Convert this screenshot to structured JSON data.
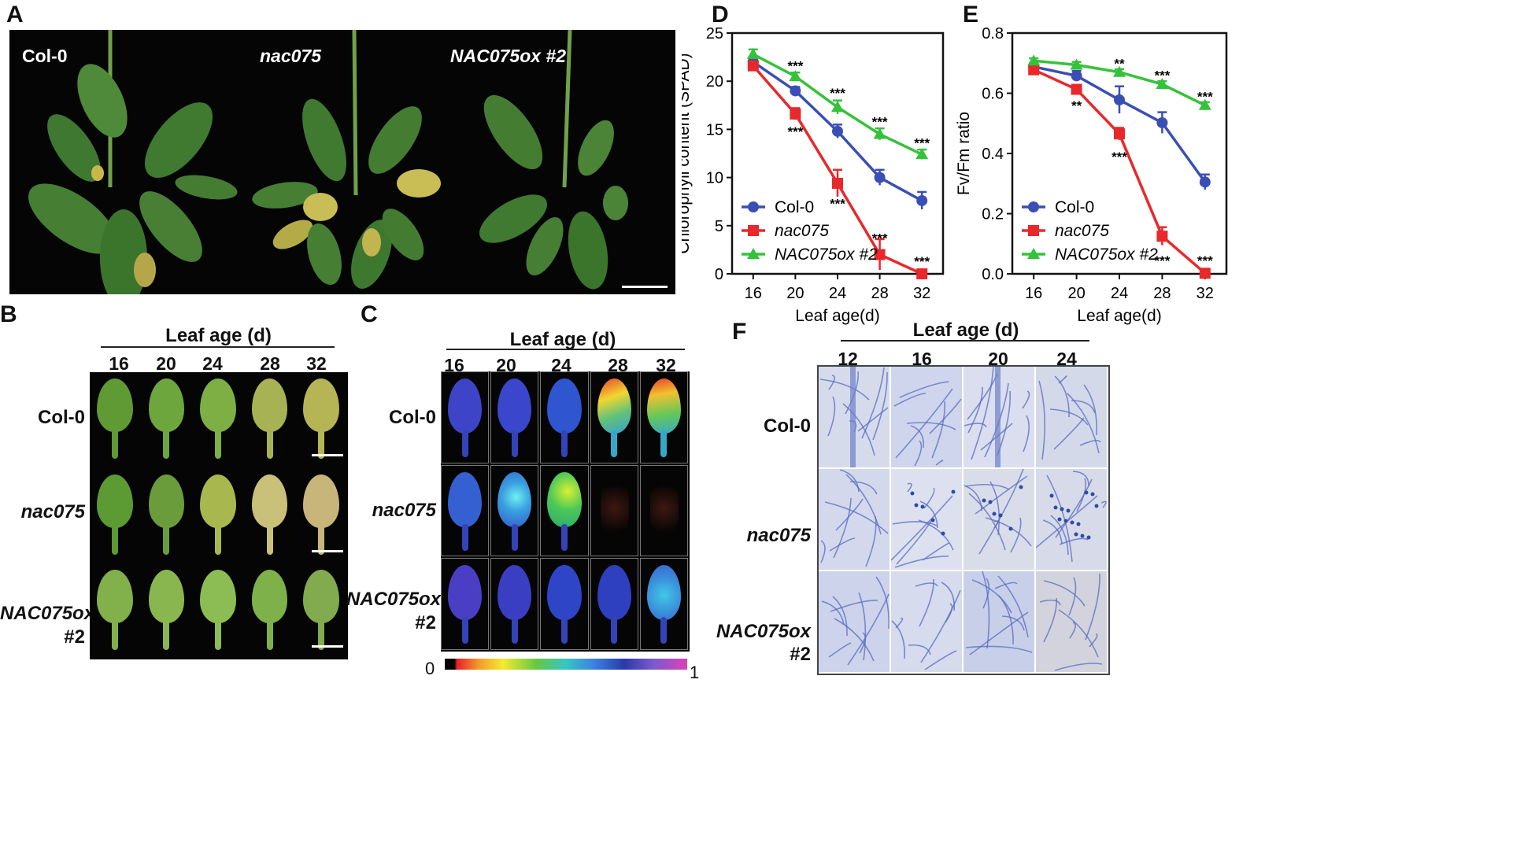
{
  "panels": {
    "A": {
      "letter": "A",
      "labels": [
        "Col-0",
        "nac075",
        "NAC075ox #2"
      ]
    },
    "B": {
      "letter": "B",
      "header": "Leaf age (d)",
      "ages": [
        "16",
        "20",
        "24",
        "28",
        "32"
      ],
      "rows": [
        "Col-0",
        "nac075",
        "NAC075ox",
        "#2"
      ]
    },
    "C": {
      "letter": "C",
      "header": "Leaf age (d)",
      "ages": [
        "16",
        "20",
        "24",
        "28",
        "32"
      ],
      "rows": [
        "Col-0",
        "nac075",
        "NAC075ox",
        "#2"
      ],
      "scale_min": "0",
      "scale_max": "1"
    },
    "F": {
      "letter": "F",
      "header": "Leaf age (d)",
      "ages": [
        "12",
        "16",
        "20",
        "24"
      ],
      "rows": [
        "Col-0",
        "nac075",
        "NAC075ox",
        "#2"
      ]
    }
  },
  "chart_data": [
    {
      "panel": "D",
      "type": "line",
      "x": [
        16,
        20,
        24,
        28,
        32
      ],
      "xlabel": "Leaf age(d)",
      "ylabel": "Chlorophyll content (SPAD)",
      "ylim": [
        0,
        25
      ],
      "yticks": [
        "0",
        "5",
        "10",
        "15",
        "20",
        "25"
      ],
      "xticks": [
        "16",
        "20",
        "24",
        "28",
        "32"
      ],
      "legend_position": "bottom-left",
      "series": [
        {
          "name": "Col-0",
          "color": "#3a4fb4",
          "marker": "circle",
          "values": [
            22.0,
            19.0,
            14.8,
            10.0,
            7.6
          ],
          "errors": [
            0.5,
            0.4,
            0.7,
            0.8,
            0.9
          ]
        },
        {
          "name": "nac075",
          "color": "#e8282b",
          "marker": "square",
          "values": [
            21.6,
            16.6,
            9.4,
            2.0,
            0.0
          ],
          "errors": [
            0.4,
            0.6,
            1.4,
            1.6,
            0.2
          ]
        },
        {
          "name": "NAC075ox #2",
          "color": "#35c23a",
          "marker": "triangle",
          "values": [
            22.8,
            20.5,
            17.3,
            14.5,
            12.4
          ],
          "errors": [
            0.5,
            0.4,
            0.7,
            0.6,
            0.5
          ]
        }
      ],
      "annotations": [
        {
          "x": 20,
          "y": 21.6,
          "text": "***"
        },
        {
          "x": 24,
          "y": 18.8,
          "text": "***"
        },
        {
          "x": 28,
          "y": 15.8,
          "text": "***"
        },
        {
          "x": 32,
          "y": 13.6,
          "text": "***"
        },
        {
          "x": 20,
          "y": 14.8,
          "text": "***"
        },
        {
          "x": 24,
          "y": 7.3,
          "text": "***"
        },
        {
          "x": 28,
          "y": 3.7,
          "text": "***"
        },
        {
          "x": 32,
          "y": 1.3,
          "text": "***"
        }
      ]
    },
    {
      "panel": "E",
      "type": "line",
      "x": [
        16,
        20,
        24,
        28,
        32
      ],
      "xlabel": "Leaf age(d)",
      "ylabel": "Fv/Fm ratio",
      "ylim": [
        0,
        0.8
      ],
      "yticks": [
        "0.0",
        "0.2",
        "0.4",
        "0.6",
        "0.8"
      ],
      "xticks": [
        "16",
        "20",
        "24",
        "28",
        "32"
      ],
      "legend_position": "bottom-left",
      "series": [
        {
          "name": "Col-0",
          "color": "#3a4fb4",
          "marker": "circle",
          "values": [
            0.688,
            0.658,
            0.578,
            0.502,
            0.305
          ],
          "errors": [
            0.012,
            0.016,
            0.045,
            0.035,
            0.025
          ]
        },
        {
          "name": "nac075",
          "color": "#e8282b",
          "marker": "square",
          "values": [
            0.678,
            0.613,
            0.465,
            0.125,
            0.002
          ],
          "errors": [
            0.01,
            0.012,
            0.02,
            0.03,
            0.005
          ]
        },
        {
          "name": "NAC075ox #2",
          "color": "#35c23a",
          "marker": "triangle",
          "values": [
            0.708,
            0.694,
            0.67,
            0.63,
            0.56
          ],
          "errors": [
            0.008,
            0.01,
            0.01,
            0.01,
            0.01
          ]
        }
      ],
      "annotations": [
        {
          "x": 24,
          "y": 0.7,
          "text": "**"
        },
        {
          "x": 28,
          "y": 0.66,
          "text": "***"
        },
        {
          "x": 32,
          "y": 0.59,
          "text": "***"
        },
        {
          "x": 20,
          "y": 0.56,
          "text": "**"
        },
        {
          "x": 24,
          "y": 0.39,
          "text": "***"
        },
        {
          "x": 28,
          "y": 0.045,
          "text": "***"
        },
        {
          "x": 32,
          "y": 0.045,
          "text": "***"
        }
      ]
    }
  ]
}
